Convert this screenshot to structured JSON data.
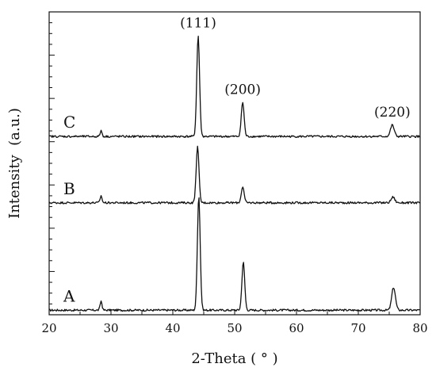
{
  "chart_data": {
    "type": "line",
    "xlabel": "2-Theta ( ° )",
    "ylabel": "Intensity  (a.u.)",
    "xlim": [
      20,
      80
    ],
    "xticks": [
      20,
      30,
      40,
      50,
      60,
      70,
      80
    ],
    "y_tick_labels_shown": false,
    "grid": false,
    "series": [
      {
        "name": "A",
        "baseline": 0.0,
        "x": [
          20,
          27,
          28.4,
          30,
          43,
          44.2,
          46,
          50.5,
          51.4,
          53,
          74.5,
          75.7,
          77,
          80
        ],
        "y": [
          0.01,
          0.01,
          0.08,
          0.01,
          0.02,
          1.0,
          0.02,
          0.02,
          0.42,
          0.02,
          0.02,
          0.2,
          0.02,
          0.01
        ]
      },
      {
        "name": "B",
        "baseline": 0.94,
        "x": [
          20,
          27,
          28.4,
          30,
          43,
          44.0,
          46,
          50.5,
          51.3,
          53,
          74.5,
          75.6,
          77,
          80
        ],
        "y": [
          0.95,
          0.95,
          1.0,
          0.95,
          0.96,
          1.43,
          0.96,
          0.96,
          1.08,
          0.96,
          0.96,
          0.99,
          0.96,
          0.95
        ]
      },
      {
        "name": "C",
        "baseline": 1.52,
        "x": [
          20,
          27,
          28.4,
          30,
          43,
          44.1,
          46,
          50.5,
          51.3,
          53,
          74.5,
          75.5,
          77,
          80
        ],
        "y": [
          1.53,
          1.53,
          1.57,
          1.53,
          1.54,
          2.4,
          1.54,
          1.54,
          1.82,
          1.54,
          1.54,
          1.62,
          1.54,
          1.53
        ]
      }
    ],
    "annotations": [
      {
        "text": "(111)",
        "x": 44.1
      },
      {
        "text": "(200)",
        "x": 51.3
      },
      {
        "text": "(220)",
        "x": 75.5
      }
    ]
  }
}
